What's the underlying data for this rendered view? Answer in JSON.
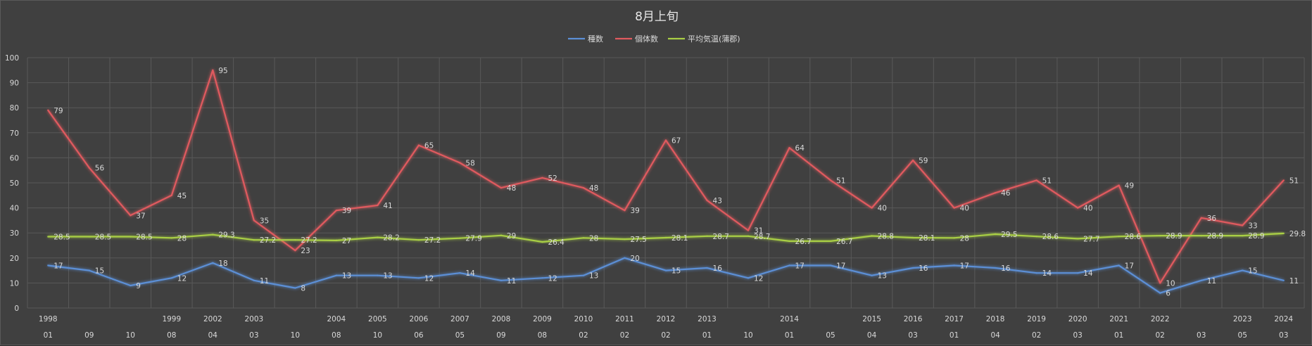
{
  "chart_data": {
    "type": "line",
    "title": "8月上旬",
    "ylim": [
      0,
      100
    ],
    "yticks": [
      0,
      10,
      20,
      30,
      40,
      50,
      60,
      70,
      80,
      90,
      100
    ],
    "grid": true,
    "legend_position": "top",
    "categories": [
      {
        "year": "1998",
        "day": "01"
      },
      {
        "year": "",
        "day": "09"
      },
      {
        "year": "",
        "day": "10"
      },
      {
        "year": "1999",
        "day": "08"
      },
      {
        "year": "2002",
        "day": "04"
      },
      {
        "year": "2003",
        "day": "03"
      },
      {
        "year": "",
        "day": "10"
      },
      {
        "year": "2004",
        "day": "08"
      },
      {
        "year": "2005",
        "day": "10"
      },
      {
        "year": "2006",
        "day": "06"
      },
      {
        "year": "2007",
        "day": "05"
      },
      {
        "year": "2008",
        "day": "09"
      },
      {
        "year": "2009",
        "day": "08"
      },
      {
        "year": "2010",
        "day": "02"
      },
      {
        "year": "2011",
        "day": "02"
      },
      {
        "year": "2012",
        "day": "02"
      },
      {
        "year": "2013",
        "day": "01"
      },
      {
        "year": "",
        "day": "10"
      },
      {
        "year": "2014",
        "day": "01"
      },
      {
        "year": "",
        "day": "05"
      },
      {
        "year": "2015",
        "day": "04"
      },
      {
        "year": "2016",
        "day": "03"
      },
      {
        "year": "2017",
        "day": "01"
      },
      {
        "year": "2018",
        "day": "04"
      },
      {
        "year": "2019",
        "day": "02"
      },
      {
        "year": "2020",
        "day": "03"
      },
      {
        "year": "2021",
        "day": "01"
      },
      {
        "year": "2022",
        "day": "02"
      },
      {
        "year": "",
        "day": "03"
      },
      {
        "year": "2023",
        "day": "05"
      },
      {
        "year": "2024",
        "day": "03"
      }
    ],
    "series": [
      {
        "name": "種数",
        "color": "#5b8fd6",
        "values": [
          17,
          15,
          9,
          12,
          18,
          11,
          8,
          13,
          13,
          12,
          14,
          11,
          12,
          13,
          20,
          15,
          16,
          12,
          17,
          17,
          13,
          16,
          17,
          16,
          14,
          14,
          17,
          6,
          11,
          15,
          11
        ]
      },
      {
        "name": "個体数",
        "color": "#e05a5e",
        "values": [
          79,
          56,
          37,
          45,
          95,
          35,
          23,
          39,
          41,
          65,
          58,
          48,
          52,
          48,
          39,
          67,
          43,
          31,
          64,
          51,
          40,
          59,
          40,
          46,
          51,
          40,
          49,
          10,
          36,
          33,
          51
        ]
      },
      {
        "name": "平均気温(蒲郡)",
        "color": "#a9cf45",
        "values": [
          28.5,
          28.5,
          28.5,
          28,
          29.3,
          27.2,
          27.2,
          27,
          28.2,
          27.2,
          27.9,
          29,
          26.4,
          28,
          27.5,
          28.1,
          28.7,
          28.7,
          26.7,
          26.7,
          28.8,
          28.1,
          28,
          29.5,
          28.6,
          27.7,
          28.6,
          28.9,
          28.9,
          28.9,
          29.8
        ]
      }
    ]
  }
}
